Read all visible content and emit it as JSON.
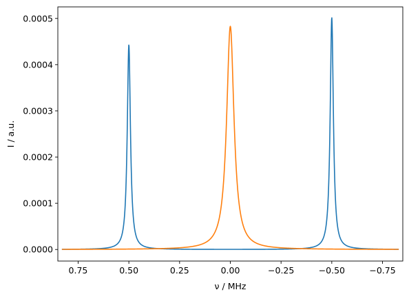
{
  "chart_data": {
    "type": "line",
    "title": "",
    "xlabel": "ν / MHz",
    "ylabel": "I / a.u.",
    "xlim": [
      0.85,
      -0.85
    ],
    "ylim": [
      -2.5e-05,
      0.000525
    ],
    "x_inverted": true,
    "grid": false,
    "legend": "none",
    "xticks": [
      0.75,
      0.5,
      0.25,
      0.0,
      -0.25,
      -0.5,
      -0.75
    ],
    "xtick_labels": [
      "0.75",
      "0.50",
      "0.25",
      "0.00",
      "−0.25",
      "−0.50",
      "−0.75"
    ],
    "yticks": [
      0.0,
      0.0001,
      0.0002,
      0.0003,
      0.0004,
      0.0005
    ],
    "ytick_labels": [
      "0.0000",
      "0.0001",
      "0.0002",
      "0.0003",
      "0.0004",
      "0.0005"
    ],
    "series": [
      {
        "color": "#1f77b4",
        "x_range": [
          0.83,
          -0.83
        ],
        "peaks": [
          {
            "center": 0.5,
            "height": 0.000443,
            "hwhm": 0.0095
          },
          {
            "center": -0.5,
            "height": 0.000502,
            "hwhm": 0.0095
          }
        ]
      },
      {
        "color": "#ff7f0e",
        "x_range": [
          0.83,
          -0.83
        ],
        "peaks": [
          {
            "center": 0.0,
            "height": 0.000483,
            "hwhm": 0.022
          }
        ]
      }
    ]
  }
}
